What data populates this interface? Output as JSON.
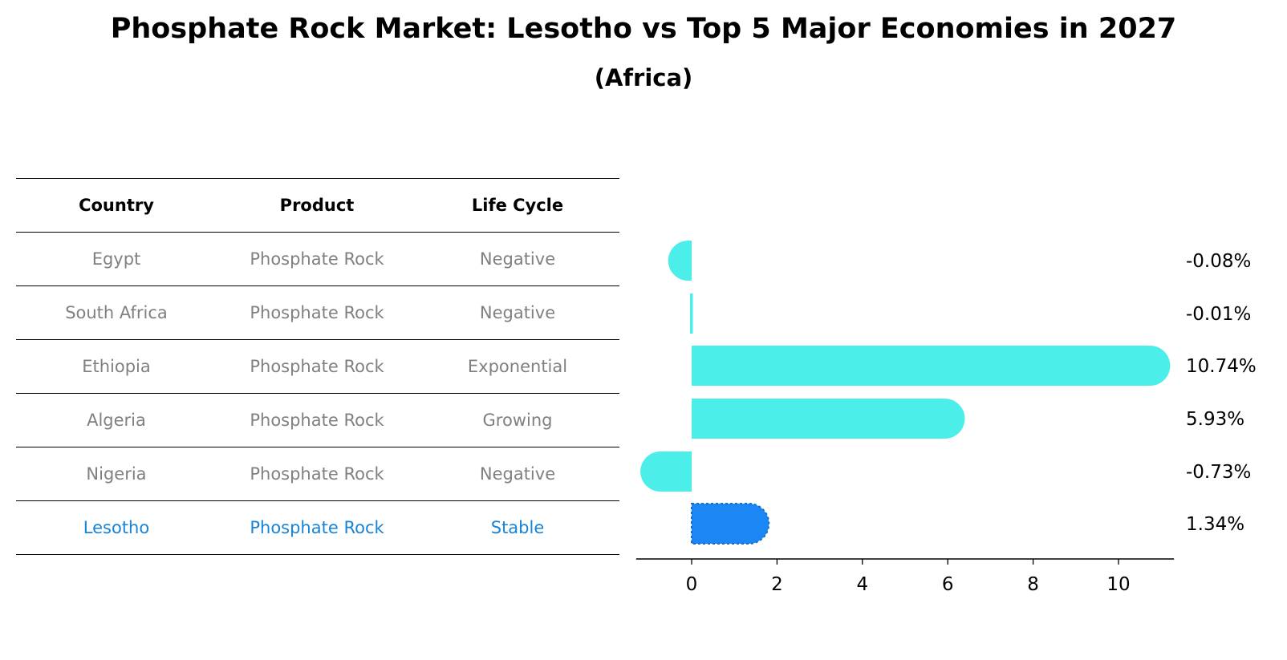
{
  "title": "Phosphate Rock Market: Lesotho vs Top 5 Major Economies in 2027",
  "subtitle": "(Africa)",
  "table": {
    "headers": [
      "Country",
      "Product",
      "Life Cycle"
    ],
    "rows": [
      {
        "country": "Egypt",
        "product": "Phosphate Rock",
        "life_cycle": "Negative",
        "highlight": false
      },
      {
        "country": "South Africa",
        "product": "Phosphate Rock",
        "life_cycle": "Negative",
        "highlight": false
      },
      {
        "country": "Ethiopia",
        "product": "Phosphate Rock",
        "life_cycle": "Exponential",
        "highlight": false
      },
      {
        "country": "Algeria",
        "product": "Phosphate Rock",
        "life_cycle": "Growing",
        "highlight": false
      },
      {
        "country": "Nigeria",
        "product": "Phosphate Rock",
        "life_cycle": "Negative",
        "highlight": false
      },
      {
        "country": "Lesotho",
        "product": "Phosphate Rock",
        "life_cycle": "Stable",
        "highlight": true
      }
    ]
  },
  "chart_data": {
    "type": "bar",
    "orientation": "horizontal",
    "categories": [
      "Egypt",
      "South Africa",
      "Ethiopia",
      "Algeria",
      "Nigeria",
      "Lesotho"
    ],
    "values": [
      -0.08,
      -0.01,
      10.74,
      5.93,
      -0.73,
      1.34
    ],
    "value_labels": [
      "-0.08%",
      "-0.01%",
      "10.74%",
      "5.93%",
      "-0.73%",
      "1.34%"
    ],
    "highlight_index": 5,
    "xlim": [
      -1.3,
      11.3
    ],
    "xticks": [
      0,
      2,
      4,
      6,
      8,
      10
    ],
    "colors": {
      "default": "#4ceeea",
      "highlight": "#1a87f5"
    },
    "grid": false,
    "legend": "none"
  }
}
